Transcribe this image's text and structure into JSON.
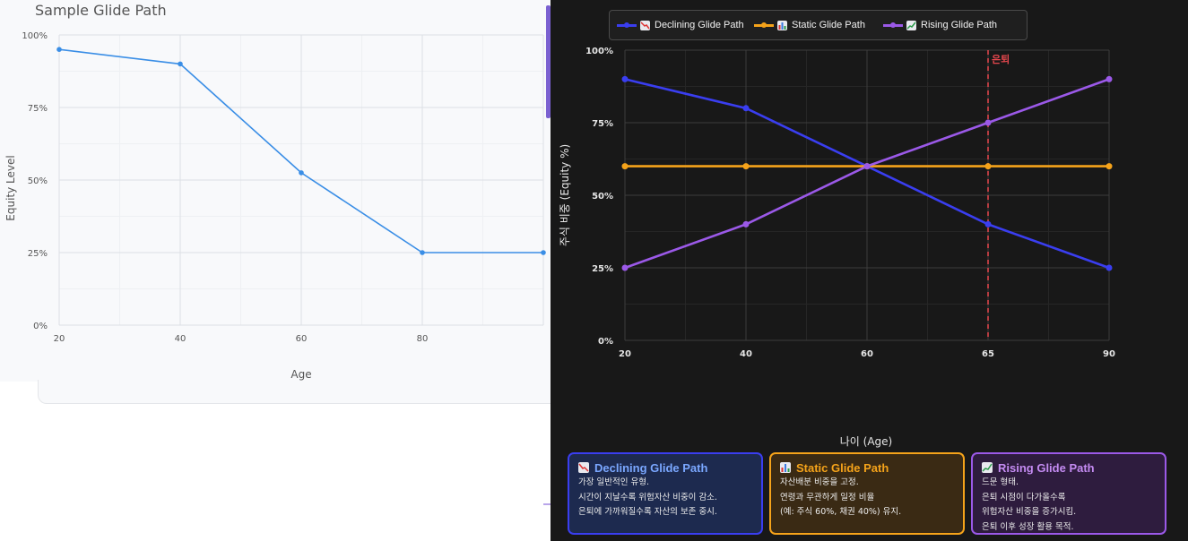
{
  "chart_data": [
    {
      "type": "line",
      "title": "Sample Glide Path",
      "xlabel": "Age",
      "ylabel": "Equity Level",
      "x": [
        20,
        40,
        60,
        80,
        100
      ],
      "xticks": [
        "20",
        "40",
        "60",
        "80"
      ],
      "yticks": [
        "0%",
        "25%",
        "50%",
        "75%",
        "100%"
      ],
      "ylim": [
        0,
        100
      ],
      "grid": true,
      "color": "#3a8ee6",
      "series": [
        {
          "name": "Equity Level",
          "values": [
            95,
            90,
            52.5,
            25,
            25
          ]
        }
      ]
    },
    {
      "type": "line",
      "xlabel": "나이 (Age)",
      "ylabel": "주식 비중 (Equity %)",
      "categories": [
        "20",
        "40",
        "60",
        "65",
        "90"
      ],
      "yticks": [
        "0%",
        "25%",
        "50%",
        "75%",
        "100%"
      ],
      "ylim": [
        0,
        100
      ],
      "grid": true,
      "legend_position": "top",
      "annotation": {
        "label": "은퇴",
        "at_category": "65",
        "color": "#e8474e"
      },
      "series": [
        {
          "name": "Declining Glide Path",
          "color": "#3a3ef0",
          "values": [
            90,
            80,
            60,
            40,
            25
          ]
        },
        {
          "name": "Static Glide Path",
          "color": "#f5a31a",
          "values": [
            60,
            60,
            60,
            60,
            60
          ]
        },
        {
          "name": "Rising Glide Path",
          "color": "#9b59e8",
          "values": [
            25,
            40,
            60,
            75,
            90
          ]
        }
      ]
    }
  ],
  "legend": [
    {
      "label": "Declining Glide Path",
      "icon": "chart-decreasing-icon",
      "color": "#3a3ef0"
    },
    {
      "label": "Static Glide Path",
      "icon": "bar-chart-icon",
      "color": "#f5a31a"
    },
    {
      "label": "Rising Glide Path",
      "icon": "chart-increasing-icon",
      "color": "#9b59e8"
    }
  ],
  "cards": [
    {
      "title": "Declining Glide Path",
      "icon": "chart-decreasing-icon",
      "color": "#7aa7ff",
      "border": "#3a3ef0",
      "bg": "#1d2a4f",
      "lines": [
        "가장 일반적인 유형.",
        "시간이 지날수록 위험자산 비중이 감소.",
        "은퇴에 가까워질수록 자산의 보존 중시."
      ]
    },
    {
      "title": "Static Glide Path",
      "icon": "bar-chart-icon",
      "color": "#f5a31a",
      "border": "#f5a31a",
      "bg": "#3a2a14",
      "lines": [
        "자산배분 비중을 고정.",
        "연령과 무관하게 일정 비율",
        "(예: 주식 60%, 채권 40%) 유지."
      ]
    },
    {
      "title": "Rising Glide Path",
      "icon": "chart-increasing-icon",
      "color": "#c48bf2",
      "border": "#9b59e8",
      "bg": "#2e1c3e",
      "lines": [
        "드문 형태.",
        "은퇴 시점이 다가올수록",
        "위험자산 비중을 증가시킴.",
        "은퇴 이후 성장 활용 목적."
      ]
    }
  ]
}
